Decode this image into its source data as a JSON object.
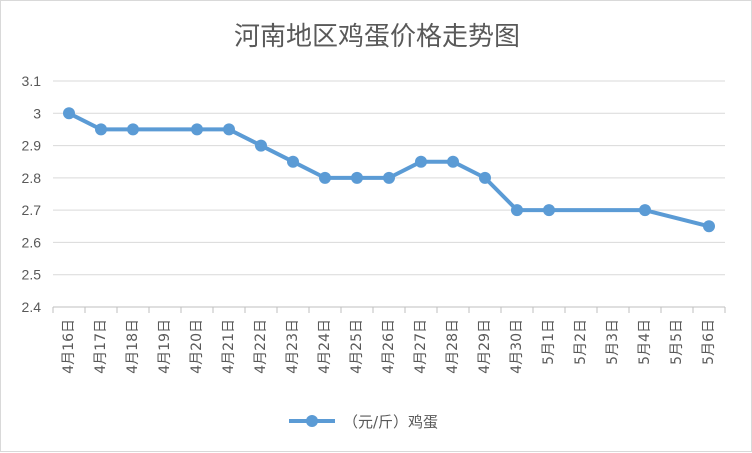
{
  "chart_data": {
    "type": "line",
    "title": "河南地区鸡蛋价格走势图",
    "categories": [
      "4月16日",
      "4月17日",
      "4月18日",
      "4月19日",
      "4月20日",
      "4月21日",
      "4月22日",
      "4月23日",
      "4月24日",
      "4月25日",
      "4月26日",
      "4月27日",
      "4月28日",
      "4月29日",
      "4月30日",
      "5月1日",
      "5月2日",
      "5月3日",
      "5月4日",
      "5月5日",
      "5月6日"
    ],
    "series": [
      {
        "name": "（元/斤）鸡蛋",
        "color": "#5b9bd5",
        "values": [
          3.0,
          2.95,
          2.95,
          null,
          2.95,
          2.95,
          2.9,
          2.85,
          2.8,
          2.8,
          2.8,
          2.85,
          2.85,
          2.8,
          2.7,
          2.7,
          null,
          null,
          2.7,
          null,
          2.65
        ]
      }
    ],
    "ylim": [
      2.4,
      3.1
    ],
    "yticks": [
      "2.4",
      "2.5",
      "2.6",
      "2.7",
      "2.8",
      "2.9",
      "3",
      "3.1"
    ],
    "grid": true,
    "legend": "bottom"
  }
}
